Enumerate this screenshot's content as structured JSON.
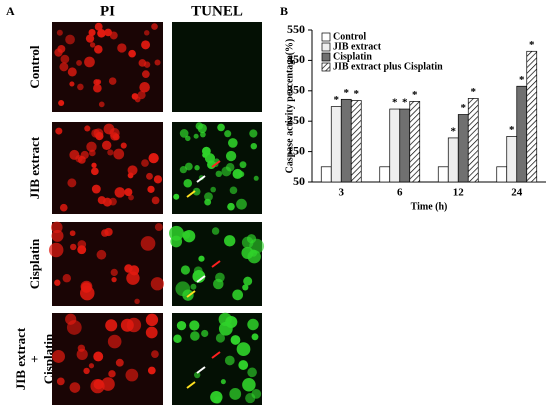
{
  "panel_a": {
    "letter": "A",
    "columns": [
      "PI",
      "TUNEL"
    ],
    "rows": [
      [
        "Control"
      ],
      [
        "JIB extract"
      ],
      [
        "Cisplatin"
      ],
      [
        "JIB extract",
        "+",
        "Cisplatin"
      ]
    ]
  },
  "chart_data": {
    "type": "bar",
    "letter": "B",
    "categories": [
      "3",
      "6",
      "12",
      "24"
    ],
    "x_label": "Time (h)",
    "y_label": "Caspase activity percentage(%)",
    "ylim": [
      50,
      550
    ],
    "yticks": [
      50,
      150,
      250,
      350,
      450,
      550
    ],
    "marker": "*",
    "series": [
      {
        "name": "Control",
        "color": "#ffffff",
        "values": [
          100,
          100,
          100,
          100
        ]
      },
      {
        "name": "JIB extract",
        "color": "#eeeeee",
        "values": [
          298,
          290,
          195,
          200
        ]
      },
      {
        "name": "Cisplatin",
        "color": "#707070",
        "values": [
          322,
          290,
          272,
          365
        ]
      },
      {
        "name": "JIB extract plus Cisplatin",
        "color": "#ffffff",
        "hatch": true,
        "values": [
          318,
          315,
          325,
          480
        ]
      }
    ]
  }
}
